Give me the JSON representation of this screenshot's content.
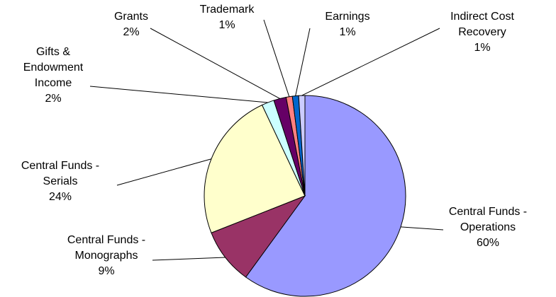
{
  "chart_data": {
    "type": "pie",
    "categories": [
      "Central Funds - Operations",
      "Central Funds - Monographs",
      "Central Funds - Serials",
      "Gifts & Endowment Income",
      "Grants",
      "Trademark",
      "Earnings",
      "Indirect Cost Recovery"
    ],
    "values": [
      60,
      9,
      24,
      2,
      2,
      1,
      1,
      1
    ],
    "value_labels": [
      "60%",
      "9%",
      "24%",
      "2%",
      "2%",
      "1%",
      "1%",
      "1%"
    ],
    "colors": [
      "#9999ff",
      "#993366",
      "#ffffcc",
      "#ccffff",
      "#660066",
      "#ff8080",
      "#0066cc",
      "#ccccff"
    ]
  }
}
